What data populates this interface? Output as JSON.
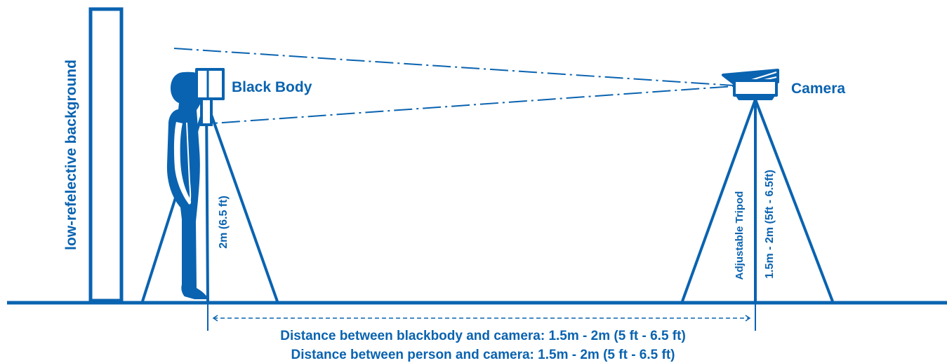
{
  "colors": {
    "primary": "#0a63b0",
    "background": "#ffffff"
  },
  "labels": {
    "background": "low-refelective background",
    "blackbody": "Black Body",
    "camera": "Camera",
    "blackbody_height": "2m (6.5 ft)",
    "adjustable_tripod": "Adjustable Tripod",
    "camera_height": "1.5m - 2m (5ft - 6.5ft)",
    "distance_blackbody_camera": "Distance between blackbody and camera: 1.5m - 2m (5 ft - 6.5 ft)",
    "distance_person_camera": "Distance between person and camera: 1.5m - 2m (5 ft - 6.5 ft)"
  }
}
